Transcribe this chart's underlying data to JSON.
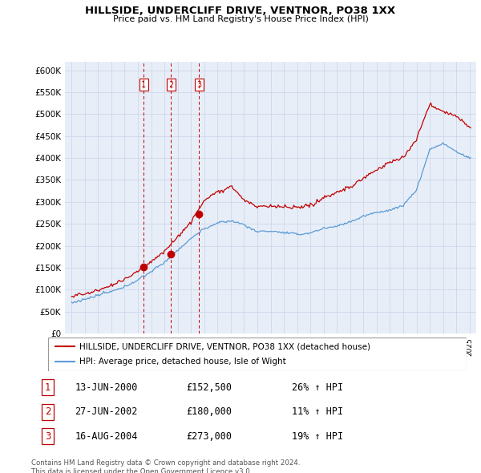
{
  "title": "HILLSIDE, UNDERCLIFF DRIVE, VENTNOR, PO38 1XX",
  "subtitle": "Price paid vs. HM Land Registry's House Price Index (HPI)",
  "ylabel_ticks": [
    "£0",
    "£50K",
    "£100K",
    "£150K",
    "£200K",
    "£250K",
    "£300K",
    "£350K",
    "£400K",
    "£450K",
    "£500K",
    "£550K",
    "£600K"
  ],
  "ylim": [
    0,
    620000
  ],
  "ytick_vals": [
    0,
    50000,
    100000,
    150000,
    200000,
    250000,
    300000,
    350000,
    400000,
    450000,
    500000,
    550000,
    600000
  ],
  "xlim_start": 1994.5,
  "xlim_end": 2025.5,
  "chart_bg_color": "#e8eef8",
  "hpi_color": "#5b9bd5",
  "price_color": "#c00000",
  "vline_color": "#c00000",
  "transactions": [
    {
      "num": 1,
      "date_str": "13-JUN-2000",
      "x": 2000.45,
      "price": 152500
    },
    {
      "num": 2,
      "date_str": "27-JUN-2002",
      "x": 2002.49,
      "price": 180000
    },
    {
      "num": 3,
      "date_str": "16-AUG-2004",
      "x": 2004.62,
      "price": 273000
    }
  ],
  "legend_entries": [
    {
      "label": "HILLSIDE, UNDERCLIFF DRIVE, VENTNOR, PO38 1XX (detached house)",
      "color": "#c00000",
      "lw": 1.5
    },
    {
      "label": "HPI: Average price, detached house, Isle of Wight",
      "color": "#5b9bd5",
      "lw": 1.5
    }
  ],
  "table_rows": [
    {
      "num": 1,
      "date": "13-JUN-2000",
      "price": "£152,500",
      "pct": "26% ↑ HPI"
    },
    {
      "num": 2,
      "date": "27-JUN-2002",
      "price": "£180,000",
      "pct": "11% ↑ HPI"
    },
    {
      "num": 3,
      "date": "16-AUG-2004",
      "price": "£273,000",
      "pct": "19% ↑ HPI"
    }
  ],
  "footnote": "Contains HM Land Registry data © Crown copyright and database right 2024.\nThis data is licensed under the Open Government Licence v3.0.",
  "background_color": "#ffffff",
  "grid_color": "#c8d4e8"
}
